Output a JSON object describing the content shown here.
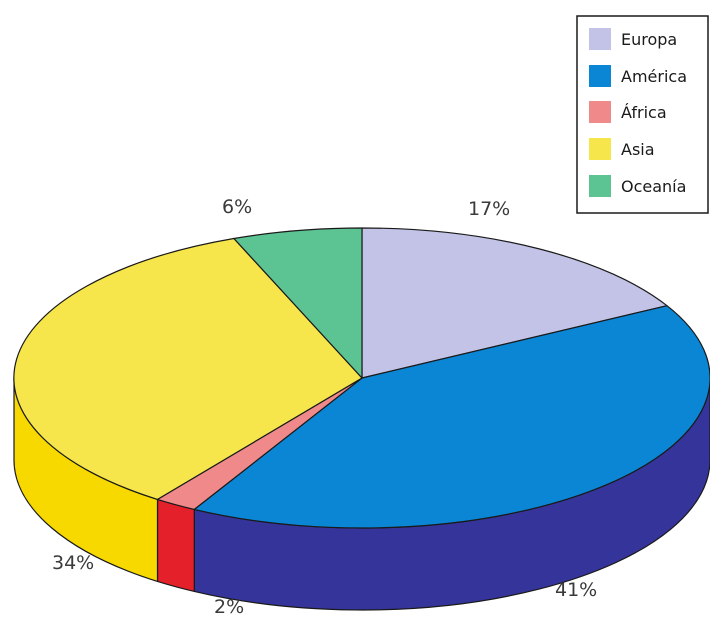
{
  "chart_data": {
    "type": "pie",
    "style": "3d",
    "start": "top, clockwise",
    "series": [
      {
        "name": "Europa",
        "value": 17,
        "label": "17%",
        "color": "#c2c3e6",
        "side_color": "#8e90c4"
      },
      {
        "name": "América",
        "value": 41,
        "label": "41%",
        "color": "#0a86d4",
        "side_color": "#34349a"
      },
      {
        "name": "África",
        "value": 2,
        "label": "2%",
        "color": "#f08a8a",
        "side_color": "#e4202a"
      },
      {
        "name": "Asia",
        "value": 34,
        "label": "34%",
        "color": "#f6e64c",
        "side_color": "#f7d900"
      },
      {
        "name": "Oceanía",
        "value": 6,
        "label": "6%",
        "color": "#5cc393",
        "side_color": "#3c9e72"
      }
    ],
    "legend": {
      "position": "top-right",
      "entries": [
        "Europa",
        "América",
        "África",
        "Asia",
        "Oceanía"
      ]
    }
  }
}
